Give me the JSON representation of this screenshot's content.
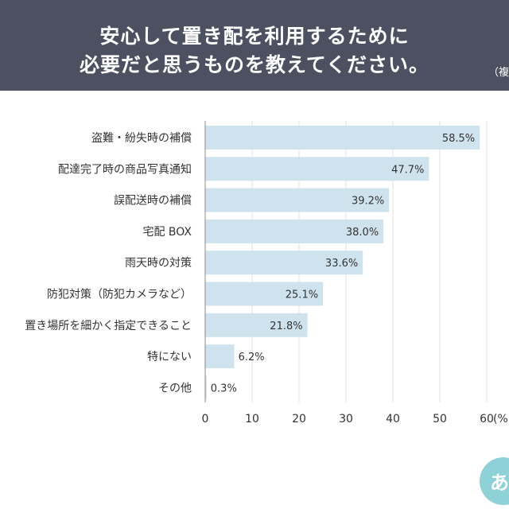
{
  "header": {
    "title_line1": "安心して置き配を利用するために",
    "title_line2": "必要だと思うものを教えてください。",
    "note": "（複"
  },
  "chart_data": {
    "type": "bar",
    "orientation": "horizontal",
    "categories": [
      "盗難・紛失時の補償",
      "配達完了時の商品写真通知",
      "誤配送時の補償",
      "宅配 BOX",
      "雨天時の対策",
      "防犯対策（防犯カメラなど）",
      "置き場所を細かく指定できること",
      "特にない",
      "その他"
    ],
    "values": [
      58.5,
      47.7,
      39.2,
      38.0,
      33.6,
      25.1,
      21.8,
      6.2,
      0.3
    ],
    "value_labels": [
      "58.5%",
      "47.7%",
      "39.2%",
      "38.0%",
      "33.6%",
      "25.1%",
      "21.8%",
      "6.2%",
      "0.3%"
    ],
    "xticks": [
      "0",
      "10",
      "20",
      "30",
      "40",
      "50",
      "60"
    ],
    "xlim": [
      0,
      60
    ],
    "xunit": "(%",
    "grid": true,
    "colors": {
      "bar": "#cfe3ef",
      "grid": "#e2e2e2",
      "axis": "#888888",
      "header": "#4d5060",
      "logo": "#8ed1d6"
    }
  },
  "logo": {
    "text": "あ"
  }
}
